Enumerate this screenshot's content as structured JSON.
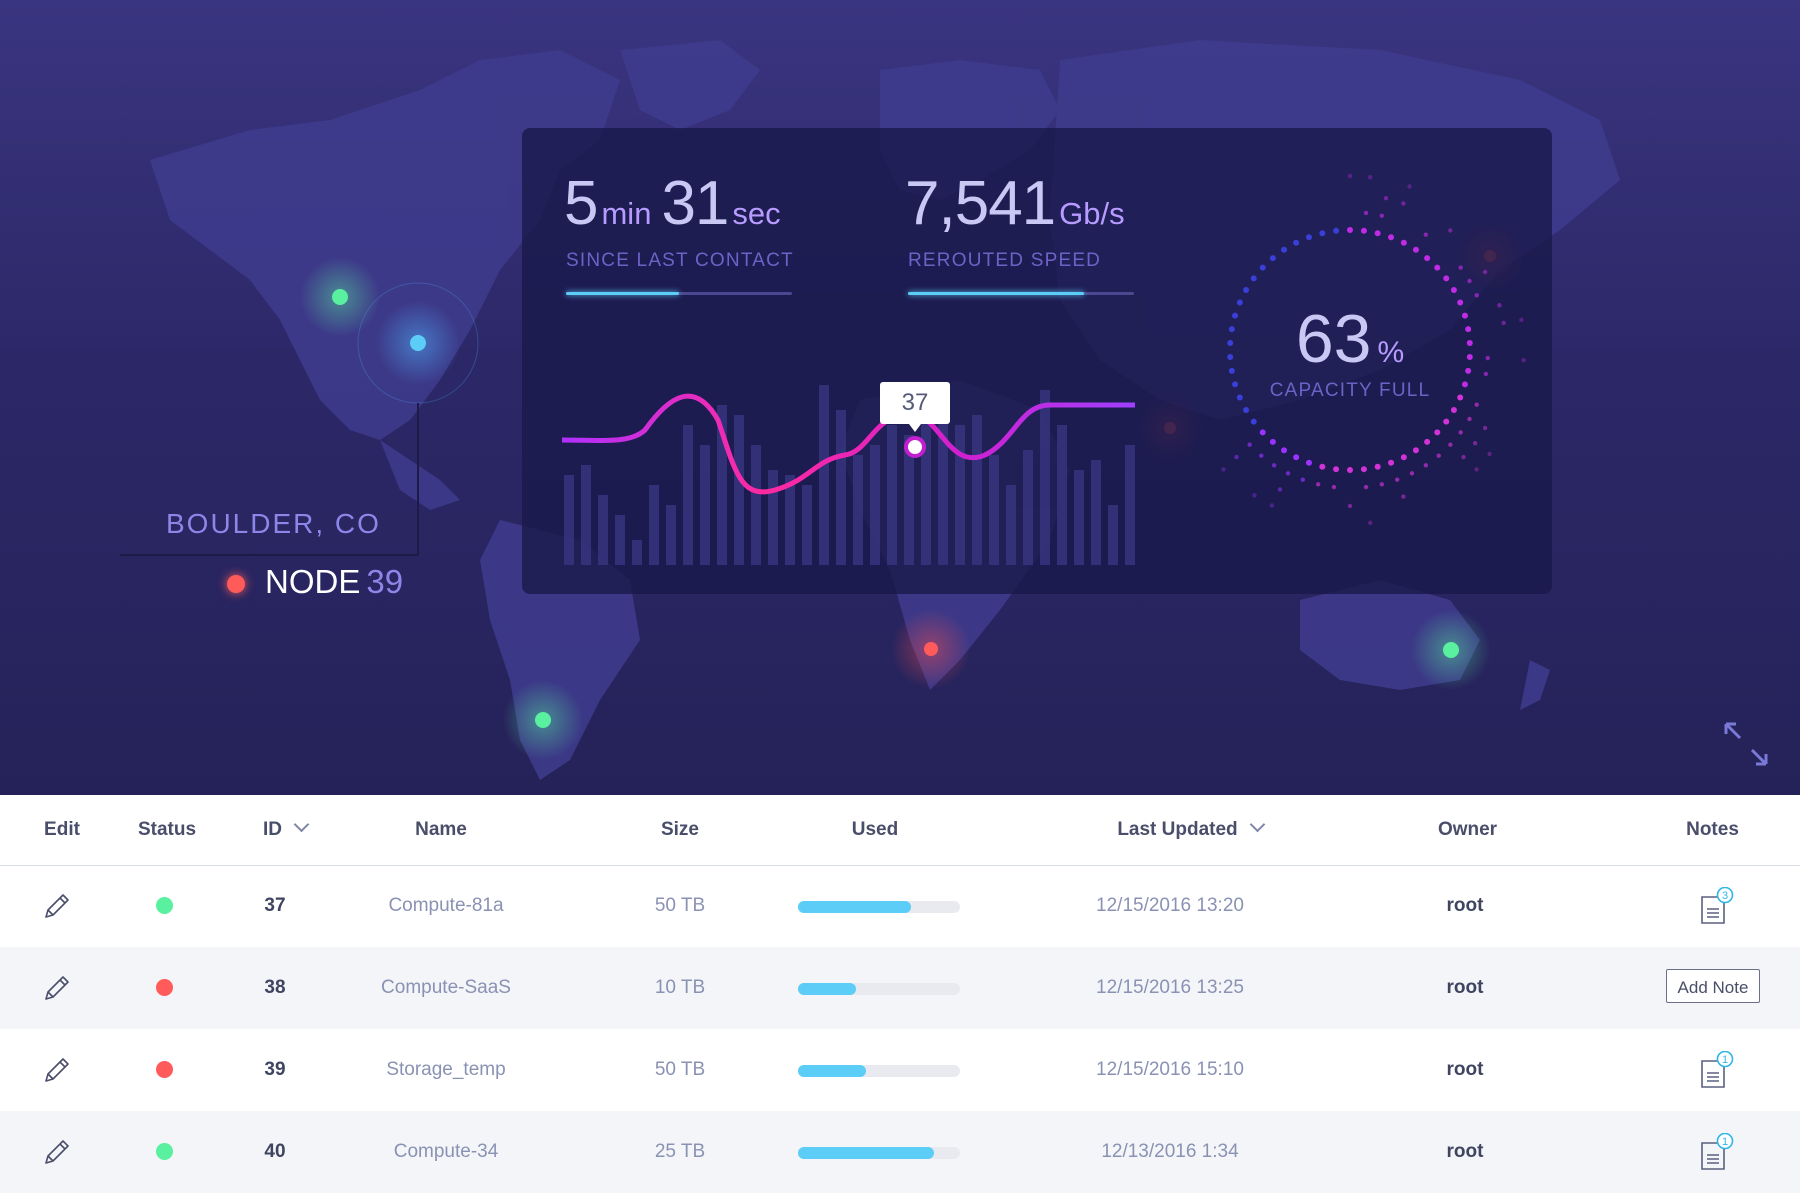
{
  "metrics": {
    "contact": {
      "minutes": "5",
      "min_unit": "min",
      "seconds": "31",
      "sec_unit": "sec",
      "label": "SINCE LAST CONTACT",
      "progress": 0.5
    },
    "speed": {
      "value": "7,541",
      "unit": "Gb/s",
      "label": "REROUTED SPEED",
      "progress": 0.78
    },
    "capacity": {
      "value": "63",
      "unit": "%",
      "label": "CAPACITY FULL",
      "fraction": 0.63
    }
  },
  "tooltip": {
    "value": "37"
  },
  "location": {
    "city": "BOULDER, CO",
    "node_label": "NODE",
    "node_number": "39"
  },
  "colors": {
    "ok": "#59f0a0",
    "error": "#ff5b5b",
    "accent": "#5bcdf6",
    "line_start": "#b030ff",
    "line_end": "#ff2aa0"
  },
  "table": {
    "headers": {
      "edit": "Edit",
      "status": "Status",
      "id": "ID",
      "name": "Name",
      "size": "Size",
      "used": "Used",
      "last_updated": "Last Updated",
      "owner": "Owner",
      "notes": "Notes"
    },
    "rows": [
      {
        "status": "ok",
        "id": "37",
        "name": "Compute-81a",
        "size": "50 TB",
        "used": 0.7,
        "last_updated": "12/15/2016 13:20",
        "owner": "root",
        "notes_count": "3"
      },
      {
        "status": "error",
        "id": "38",
        "name": "Compute-SaaS",
        "size": "10 TB",
        "used": 0.36,
        "last_updated": "12/15/2016 13:25",
        "owner": "root",
        "add_note_label": "Add Note"
      },
      {
        "status": "error",
        "id": "39",
        "name": "Storage_temp",
        "size": "50 TB",
        "used": 0.42,
        "last_updated": "12/15/2016 15:10",
        "owner": "root",
        "notes_count": "1"
      },
      {
        "status": "ok",
        "id": "40",
        "name": "Compute-34",
        "size": "25 TB",
        "used": 0.84,
        "last_updated": "12/13/2016 1:34",
        "owner": "root",
        "notes_count": "1"
      }
    ]
  },
  "icons": {
    "edit": "pencil-icon",
    "notes": "document-icon",
    "expand": "expand-icon",
    "sort": "chevron-down-icon"
  }
}
